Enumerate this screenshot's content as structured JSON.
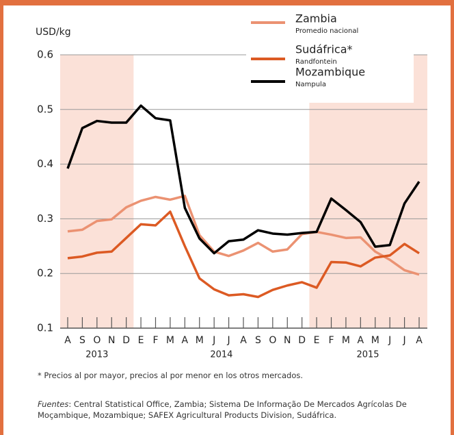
{
  "chart_data": {
    "type": "line",
    "y_label": "USD/kg",
    "categories": [
      "A",
      "S",
      "O",
      "N",
      "D",
      "E",
      "F",
      "M",
      "A",
      "M",
      "J",
      "J",
      "A",
      "S",
      "O",
      "N",
      "D",
      "E",
      "F",
      "M",
      "A",
      "M",
      "J",
      "J",
      "A"
    ],
    "year_labels": [
      "2013",
      "2014",
      "2015"
    ],
    "ylim": [
      0.1,
      0.6
    ],
    "yticks": [
      0.1,
      0.2,
      0.3,
      0.4,
      0.5,
      0.6
    ],
    "grid": true,
    "series": [
      {
        "name": "Zambia",
        "note": "Promedio nacional",
        "color": "#eb9272",
        "values": [
          0.277,
          0.28,
          0.296,
          0.299,
          0.321,
          0.333,
          0.34,
          0.335,
          0.342,
          0.27,
          0.24,
          0.232,
          0.242,
          0.256,
          0.24,
          0.244,
          0.272,
          0.276,
          0.271,
          0.265,
          0.266,
          0.24,
          0.225,
          0.206,
          0.198
        ]
      },
      {
        "name": "Sudáfrica*",
        "note": "Randfontein",
        "color": "#dc5a23",
        "values": [
          0.228,
          0.231,
          0.238,
          0.24,
          0.265,
          0.29,
          0.288,
          0.313,
          0.25,
          0.191,
          0.171,
          0.16,
          0.162,
          0.157,
          0.17,
          0.178,
          0.184,
          0.174,
          0.221,
          0.22,
          0.213,
          0.229,
          0.233,
          0.254,
          0.237
        ]
      },
      {
        "name": "Mozambique",
        "note": "Nampula",
        "color": "#000000",
        "values": [
          0.392,
          0.466,
          0.479,
          0.476,
          0.476,
          0.507,
          0.484,
          0.48,
          0.32,
          0.264,
          0.237,
          0.259,
          0.262,
          0.279,
          0.273,
          0.271,
          0.274,
          0.276,
          0.337,
          0.316,
          0.294,
          0.249,
          0.252,
          0.328,
          0.368
        ]
      }
    ],
    "footnote": "* Precios al por mayor,  precios al por menor en los otros mercados.",
    "source_label": "Fuentes",
    "source_text": ": Central Statistical Office, Zambia; Sistema De Informação De Mercados Agrícolas De Moçambique, Mozambique; SAFEX Agricultural Products Division, Sudáfrica."
  }
}
